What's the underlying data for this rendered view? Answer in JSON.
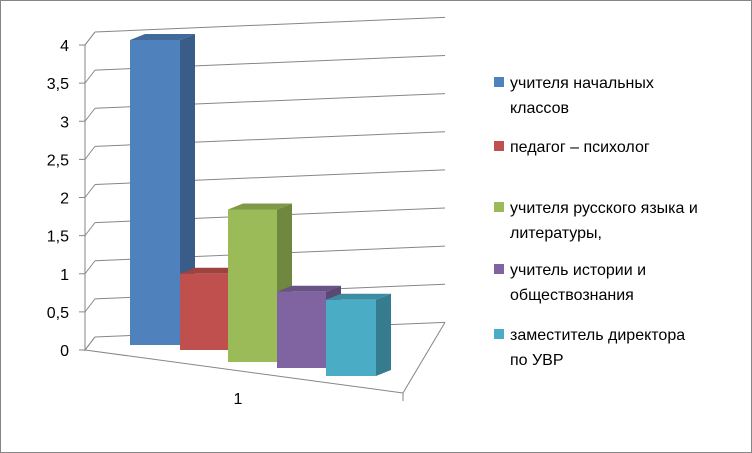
{
  "chart_data": {
    "type": "bar",
    "categories": [
      "1"
    ],
    "ylim": [
      0,
      4
    ],
    "yticks": [
      "0",
      "0,5",
      "1",
      "1,5",
      "2",
      "2,5",
      "3",
      "3,5",
      "4"
    ],
    "grid": true,
    "legend_position": "right",
    "series": [
      {
        "name": "учителя начальных классов",
        "values": [
          4
        ],
        "color": "#4F81BD",
        "legend_lines": [
          "учителя начальных",
          "классов"
        ]
      },
      {
        "name": "педагог – психолог",
        "values": [
          1
        ],
        "color": "#C0504D",
        "legend_lines": [
          "педагог – психолог"
        ]
      },
      {
        "name": "учителя русского языка и литературы,",
        "values": [
          2
        ],
        "color": "#9BBB59",
        "legend_lines": [
          "учителя русского языка и",
          "литературы,"
        ]
      },
      {
        "name": "учитель истории и обществознания",
        "values": [
          1
        ],
        "color": "#8064A2",
        "legend_lines": [
          "учитель истории и",
          "обществознания"
        ]
      },
      {
        "name": "заместитель директора по УВР",
        "values": [
          1
        ],
        "color": "#4BACC6",
        "legend_lines": [
          "заместитель директора",
          "по УВР"
        ]
      }
    ]
  }
}
